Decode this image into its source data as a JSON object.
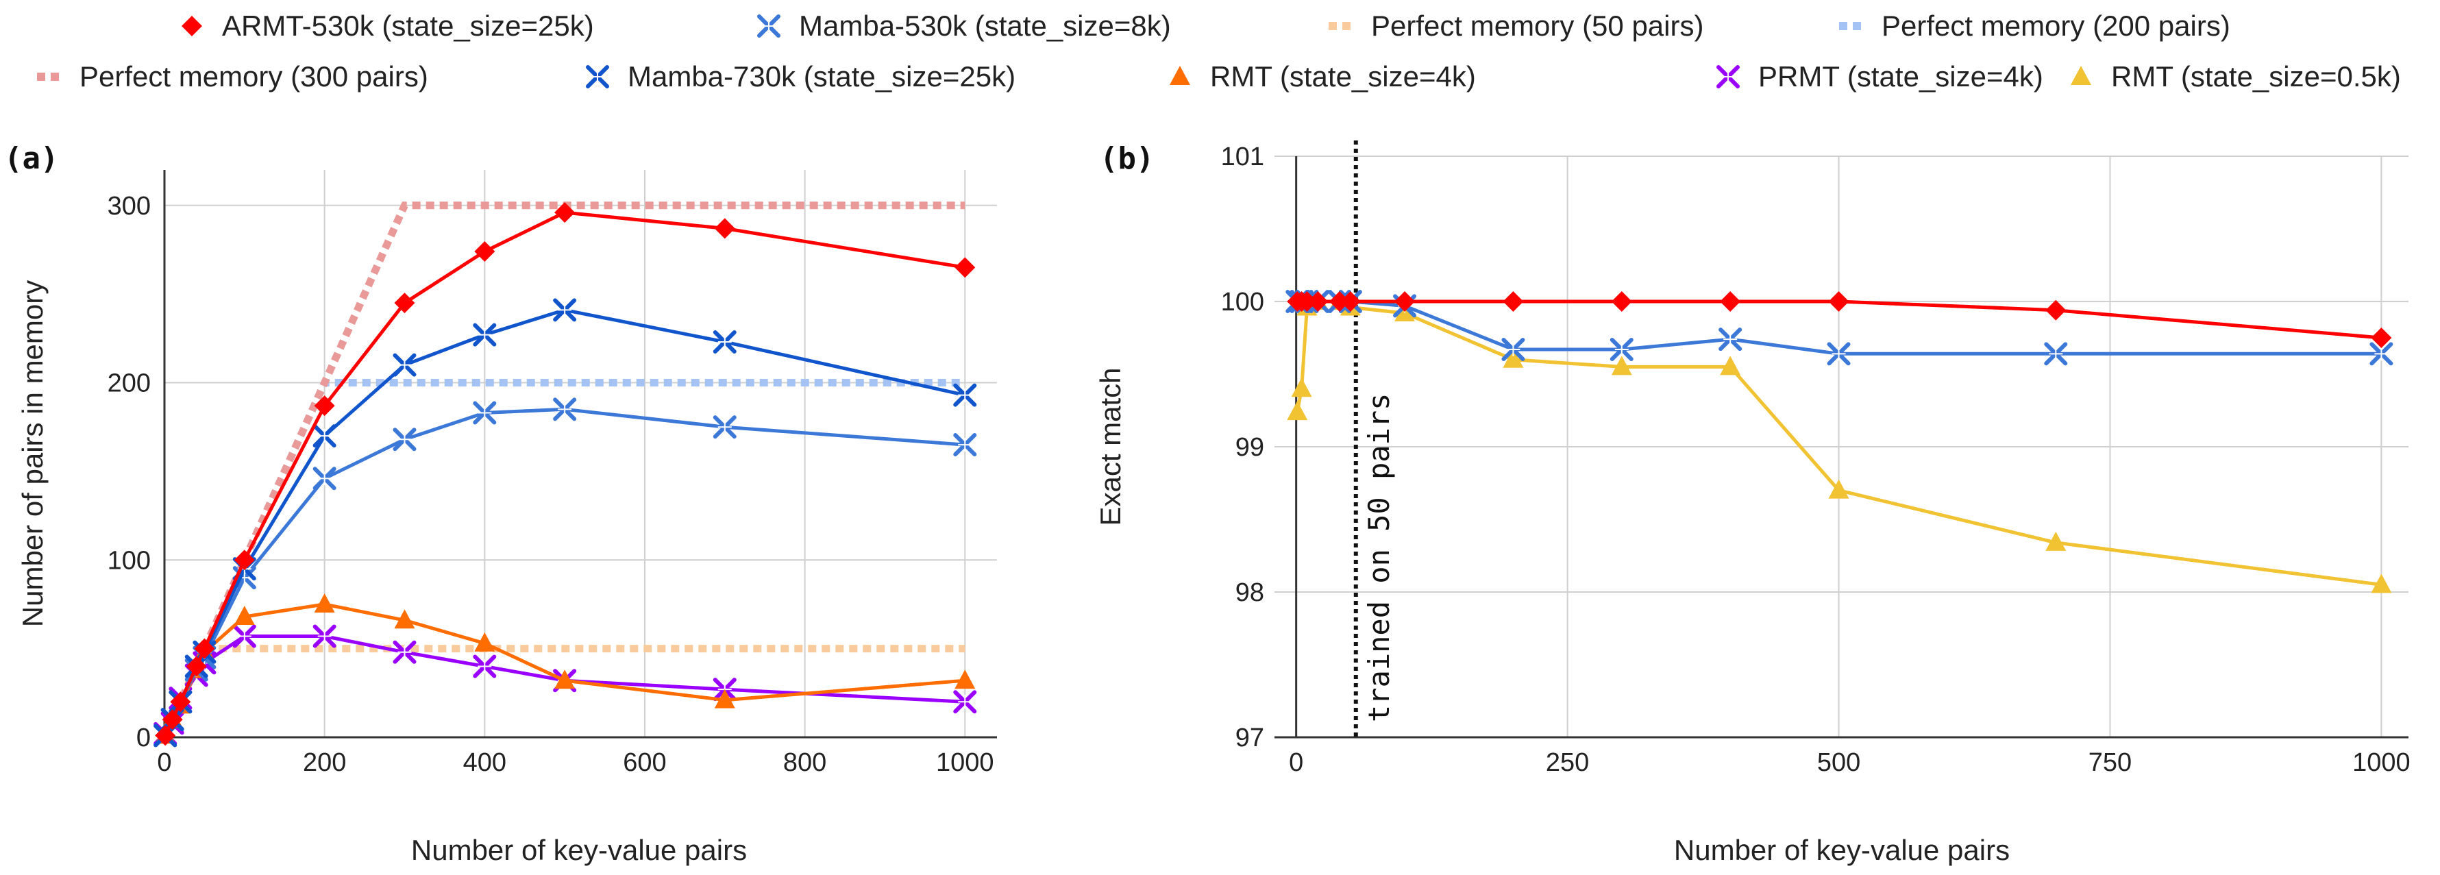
{
  "legend": [
    {
      "label": "ARMT-530k (state_size=25k)",
      "marker": "diamond",
      "color": "#ff0000"
    },
    {
      "label": "Mamba-530k (state_size=8k)",
      "marker": "star",
      "color": "#3c78d8"
    },
    {
      "label": "Perfect memory (50 pairs)",
      "marker": "dash",
      "color": "#f9cb9c"
    },
    {
      "label": "Perfect memory (200 pairs)",
      "marker": "dash",
      "color": "#a4c2f4"
    },
    {
      "label": "Perfect memory (300 pairs)",
      "marker": "dash",
      "color": "#ea9999"
    },
    {
      "label": "Mamba-730k (state_size=25k)",
      "marker": "star",
      "color": "#1155cc"
    },
    {
      "label": "RMT (state_size=4k)",
      "marker": "triangle",
      "color": "#ff6d01"
    },
    {
      "label": "PRMT (state_size=4k)",
      "marker": "star",
      "color": "#9900ff"
    },
    {
      "label": "RMT (state_size=0.5k)",
      "marker": "triangle",
      "color": "#f1c232"
    }
  ],
  "chart_data": [
    {
      "panel": "(a)",
      "type": "line",
      "xlabel": "Number of key-value pairs",
      "ylabel": "Number of pairs in memory",
      "xlim": [
        0,
        1040
      ],
      "ylim": [
        0,
        320
      ],
      "xticks": [
        "0",
        "200",
        "400",
        "600",
        "800",
        "1000"
      ],
      "yticks": [
        "0",
        "100",
        "200",
        "300"
      ],
      "grid": true,
      "series": [
        {
          "name": "Perfect memory (50 pairs)",
          "style": "dotted",
          "color": "#f9cb9c",
          "marker": "none",
          "x": [
            1,
            50,
            100,
            1000
          ],
          "y": [
            1,
            50,
            50,
            50
          ]
        },
        {
          "name": "Perfect memory (200 pairs)",
          "style": "dotted",
          "color": "#a4c2f4",
          "marker": "none",
          "x": [
            1,
            200,
            1000
          ],
          "y": [
            1,
            200,
            200
          ]
        },
        {
          "name": "Perfect memory (300 pairs)",
          "style": "dotted",
          "color": "#ea9999",
          "marker": "none",
          "x": [
            1,
            300,
            1000
          ],
          "y": [
            1,
            300,
            300
          ]
        },
        {
          "name": "PRMT (state_size=4k)",
          "color": "#9900ff",
          "marker": "star",
          "x": [
            1,
            10,
            20,
            40,
            50,
            100,
            200,
            300,
            400,
            500,
            700,
            1000
          ],
          "y": [
            2,
            8,
            22,
            35,
            42,
            57,
            57,
            48,
            40,
            32,
            27,
            20
          ]
        },
        {
          "name": "RMT (state_size=4k)",
          "color": "#ff6d01",
          "marker": "triangle",
          "x": [
            1,
            10,
            20,
            40,
            50,
            100,
            200,
            300,
            400,
            500,
            700,
            1000
          ],
          "y": [
            1,
            10,
            18,
            38,
            48,
            68,
            75,
            66,
            53,
            32,
            21,
            32
          ]
        },
        {
          "name": "Mamba-530k (state_size=8k)",
          "color": "#3c78d8",
          "marker": "star",
          "x": [
            1,
            10,
            20,
            40,
            50,
            100,
            200,
            300,
            400,
            500,
            700,
            1000
          ],
          "y": [
            1,
            10,
            20,
            38,
            45,
            90,
            146,
            168,
            183,
            185,
            175,
            165
          ]
        },
        {
          "name": "Mamba-730k (state_size=25k)",
          "color": "#1155cc",
          "marker": "star",
          "x": [
            1,
            10,
            20,
            40,
            50,
            100,
            200,
            300,
            400,
            500,
            700,
            1000
          ],
          "y": [
            1,
            10,
            20,
            40,
            48,
            95,
            170,
            210,
            227,
            241,
            223,
            193
          ]
        },
        {
          "name": "ARMT-530k (state_size=25k)",
          "color": "#ff0000",
          "marker": "diamond",
          "x": [
            1,
            10,
            20,
            40,
            50,
            100,
            200,
            300,
            400,
            500,
            700,
            1000
          ],
          "y": [
            1,
            10,
            20,
            40,
            50,
            100,
            187,
            245,
            274,
            296,
            287,
            265
          ]
        }
      ]
    },
    {
      "panel": "(b)",
      "type": "line",
      "xlabel": "Number of key-value pairs",
      "ylabel": "Exact match",
      "xlim": [
        -20,
        1025
      ],
      "ylim": [
        97,
        101
      ],
      "xticks": [
        "0",
        "250",
        "500",
        "750",
        "1000"
      ],
      "yticks": [
        "97",
        "98",
        "99",
        "100",
        "101"
      ],
      "grid": true,
      "annotation": {
        "text": "trained on 50 pairs",
        "x": 55
      },
      "series": [
        {
          "name": "RMT (state_size=0.5k)",
          "color": "#f1c232",
          "marker": "triangle",
          "x": [
            1,
            5,
            10,
            20,
            40,
            50,
            100,
            200,
            300,
            400,
            500,
            700,
            1000
          ],
          "y": [
            99.24,
            99.4,
            99.96,
            100.0,
            100.0,
            99.96,
            99.92,
            99.6,
            99.55,
            99.55,
            98.7,
            98.34,
            98.05
          ]
        },
        {
          "name": "Mamba-530k (state_size=8k)",
          "color": "#3c78d8",
          "marker": "star",
          "x": [
            1,
            5,
            10,
            20,
            40,
            50,
            100,
            200,
            300,
            400,
            500,
            700,
            1000
          ],
          "y": [
            100.0,
            100.0,
            100.0,
            100.0,
            100.0,
            100.0,
            99.97,
            99.67,
            99.67,
            99.74,
            99.64,
            99.64,
            99.64
          ]
        },
        {
          "name": "ARMT-530k (state_size=25k)",
          "color": "#ff0000",
          "marker": "diamond",
          "x": [
            1,
            5,
            10,
            20,
            40,
            50,
            100,
            200,
            300,
            400,
            500,
            700,
            1000
          ],
          "y": [
            100.0,
            100.0,
            100.0,
            100.0,
            100.0,
            100.0,
            100.0,
            100.0,
            100.0,
            100.0,
            100.0,
            99.94,
            99.75
          ]
        }
      ]
    }
  ]
}
